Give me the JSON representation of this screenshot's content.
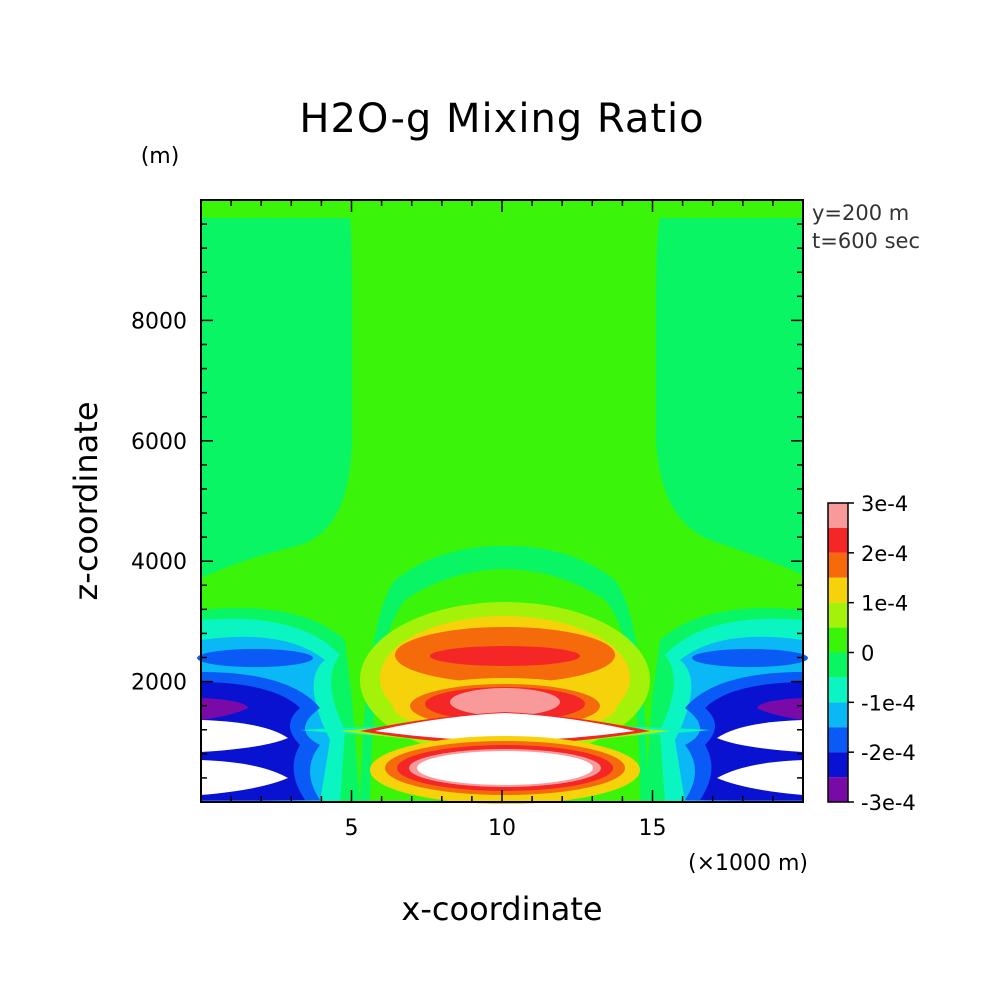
{
  "chart_data": {
    "type": "contour",
    "title": "H2O-g Mixing Ratio",
    "xlabel": "x-coordinate",
    "ylabel": "z-coordinate",
    "x_unit": "(×1000 m)",
    "y_unit": "(m)",
    "annotations": [
      "y=200 m",
      "t=600 sec"
    ],
    "xlim": [
      0,
      20
    ],
    "ylim": [
      0,
      10000
    ],
    "x_ticks": [
      5,
      10,
      15
    ],
    "y_ticks": [
      2000,
      4000,
      6000,
      8000
    ],
    "x_tick_labels": [
      "5",
      "10",
      "15"
    ],
    "y_tick_labels": [
      "2000",
      "4000",
      "6000",
      "8000"
    ],
    "colorbar": {
      "labels": [
        "3e-4",
        "2e-4",
        "1e-4",
        "0",
        "-1e-4",
        "-2e-4",
        "-3e-4"
      ],
      "colors": [
        "#f99a9a",
        "#f52626",
        "#f56a0a",
        "#f5d20a",
        "#a4f20a",
        "#3af50a",
        "#0af563",
        "#0af5c2",
        "#0ab8f5",
        "#0a5af5",
        "#0a12d2",
        "#7a0aa8"
      ],
      "max_color": "#ffffff",
      "min_color": "#ffffff"
    }
  }
}
